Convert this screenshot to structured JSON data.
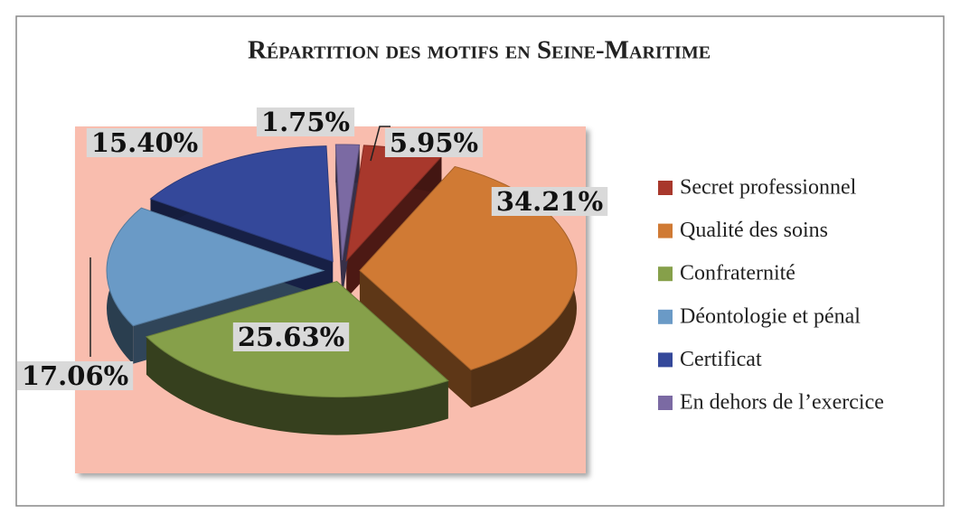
{
  "chart_data": {
    "type": "pie",
    "title": "Répartition des motifs en Seine-Maritime",
    "categories": [
      "Secret professionnel",
      "Qualité des soins",
      "Confraternité",
      "Déontologie et pénal",
      "Certificat",
      "En dehors de l’exercice"
    ],
    "values": [
      5.95,
      34.21,
      25.63,
      17.06,
      15.4,
      1.75
    ],
    "value_labels": [
      "5.95%",
      "34.21%",
      "25.63%",
      "17.06%",
      "15.40%",
      "1.75%"
    ],
    "colors": [
      "#a8382c",
      "#d07a34",
      "#86a04a",
      "#6a9ac6",
      "#34489a",
      "#7b6aa3"
    ],
    "legend": "right"
  }
}
